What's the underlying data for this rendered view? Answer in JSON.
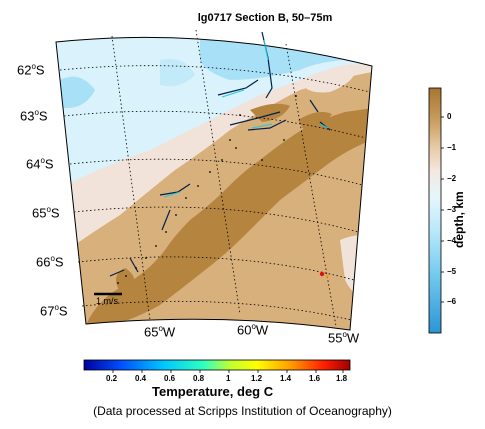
{
  "map": {
    "title": "lg0717 Section B, 50–75m",
    "lat_labels": [
      {
        "deg": "62",
        "sup": "o",
        "hem": "S"
      },
      {
        "deg": "63",
        "sup": "o",
        "hem": "S"
      },
      {
        "deg": "64",
        "sup": "o",
        "hem": "S"
      },
      {
        "deg": "65",
        "sup": "o",
        "hem": "S"
      },
      {
        "deg": "66",
        "sup": "o",
        "hem": "S"
      },
      {
        "deg": "67",
        "sup": "o",
        "hem": "S"
      }
    ],
    "lon_labels": [
      {
        "deg": "65",
        "sup": "o",
        "hem": "W"
      },
      {
        "deg": "60",
        "sup": "o",
        "hem": "W"
      },
      {
        "deg": "55",
        "sup": "o",
        "hem": "W"
      }
    ],
    "scale_label": "1 m/s",
    "credit": "(Data processed at Scripps Institution of Oceanography)"
  },
  "depth_colorbar": {
    "title": "depth, km",
    "ticks": [
      "0",
      "−1",
      "−2",
      "−3",
      "−4",
      "−5",
      "−6"
    ],
    "colors": {
      "land": "#b5843f",
      "shelf": "#d8b07a",
      "slope": "#f1e1d6",
      "deep_light": "#d8f2fb",
      "deep": "#a4e0f7",
      "abyss": "#2d9bd8"
    }
  },
  "temp_colorbar": {
    "title": "Temperature, deg C",
    "ticks": [
      "0.2",
      "0.4",
      "0.6",
      "0.8",
      "1",
      "1.2",
      "1.4",
      "1.6",
      "1.8"
    ]
  }
}
